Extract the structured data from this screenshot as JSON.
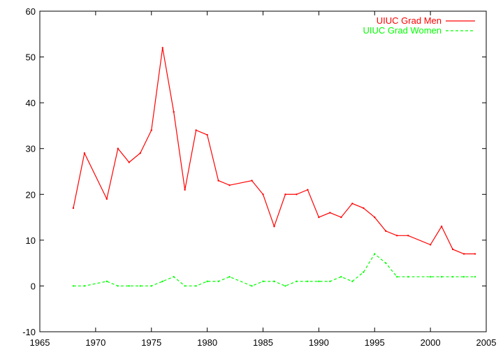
{
  "chart_data": {
    "type": "line",
    "xlim": [
      1965,
      2005
    ],
    "ylim": [
      -10,
      60
    ],
    "x_ticks": [
      1965,
      1970,
      1975,
      1980,
      1985,
      1990,
      1995,
      2000,
      2005
    ],
    "y_ticks": [
      -10,
      0,
      10,
      20,
      30,
      40,
      50,
      60
    ],
    "legend_position": "top-right",
    "grid": false,
    "series": [
      {
        "name": "UIUC Grad Men",
        "color": "#ff0000",
        "dash": "solid",
        "points": [
          [
            1968,
            17
          ],
          [
            1969,
            29
          ],
          [
            1971,
            19
          ],
          [
            1972,
            30
          ],
          [
            1973,
            27
          ],
          [
            1974,
            29
          ],
          [
            1975,
            34
          ],
          [
            1976,
            52
          ],
          [
            1977,
            38
          ],
          [
            1978,
            21
          ],
          [
            1979,
            34
          ],
          [
            1980,
            33
          ],
          [
            1981,
            23
          ],
          [
            1982,
            22
          ],
          [
            1984,
            23
          ],
          [
            1985,
            20
          ],
          [
            1986,
            13
          ],
          [
            1987,
            20
          ],
          [
            1988,
            20
          ],
          [
            1989,
            21
          ],
          [
            1990,
            15
          ],
          [
            1991,
            16
          ],
          [
            1992,
            15
          ],
          [
            1993,
            18
          ],
          [
            1994,
            17
          ],
          [
            1995,
            15
          ],
          [
            1996,
            12
          ],
          [
            1997,
            11
          ],
          [
            1998,
            11
          ],
          [
            2000,
            9
          ],
          [
            2001,
            13
          ],
          [
            2002,
            8
          ],
          [
            2003,
            7
          ],
          [
            2004,
            7
          ]
        ]
      },
      {
        "name": "UIUC Grad Women",
        "color": "#00ff00",
        "dash": "dashed",
        "points": [
          [
            1968,
            0
          ],
          [
            1969,
            0
          ],
          [
            1971,
            1
          ],
          [
            1972,
            0
          ],
          [
            1973,
            0
          ],
          [
            1974,
            0
          ],
          [
            1975,
            0
          ],
          [
            1976,
            1
          ],
          [
            1977,
            2
          ],
          [
            1978,
            0
          ],
          [
            1979,
            0
          ],
          [
            1980,
            1
          ],
          [
            1981,
            1
          ],
          [
            1982,
            2
          ],
          [
            1984,
            0
          ],
          [
            1985,
            1
          ],
          [
            1986,
            1
          ],
          [
            1987,
            0
          ],
          [
            1988,
            1
          ],
          [
            1989,
            1
          ],
          [
            1990,
            1
          ],
          [
            1991,
            1
          ],
          [
            1992,
            2
          ],
          [
            1993,
            1
          ],
          [
            1994,
            3
          ],
          [
            1995,
            7
          ],
          [
            1996,
            5
          ],
          [
            1997,
            2
          ],
          [
            1998,
            2
          ],
          [
            2000,
            2
          ],
          [
            2001,
            2
          ],
          [
            2002,
            2
          ],
          [
            2003,
            2
          ],
          [
            2004,
            2
          ]
        ]
      }
    ]
  }
}
